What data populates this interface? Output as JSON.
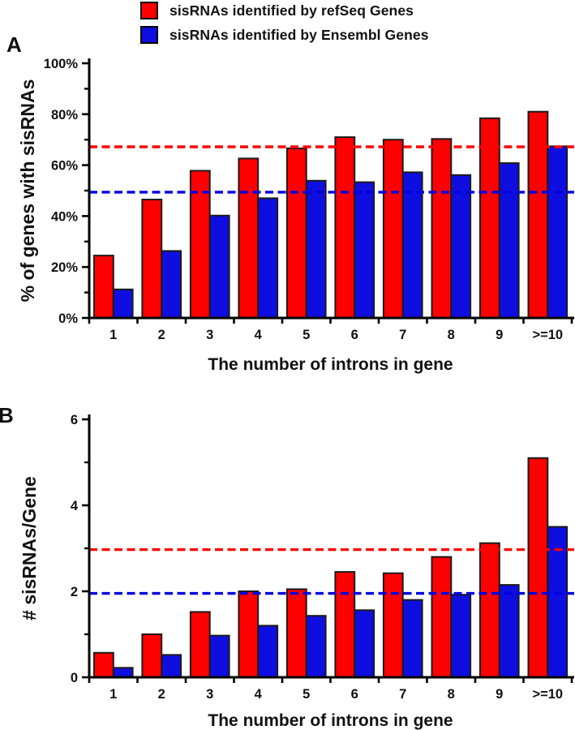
{
  "figure": {
    "legend": {
      "position": "top",
      "items": [
        {
          "label": "sisRNAs identified by refSeq Genes",
          "color": "#FF0000",
          "swatch": "red-square-icon"
        },
        {
          "label": "sisRNAs identified by Ensembl Genes",
          "color": "#0E0EE0",
          "swatch": "blue-square-icon"
        }
      ]
    }
  },
  "colors": {
    "refseq_red": "#FF0000",
    "ensembl_blue": "#0E0EE0",
    "bar_outline": "#1B1B1B",
    "axis": "#000000"
  },
  "chart_data": [
    {
      "type": "bar",
      "panel": "A",
      "xlabel": "The number of introns in gene",
      "ylabel": "% of genes with sisRNAs",
      "categories": [
        "1",
        "2",
        "3",
        "4",
        "5",
        "6",
        "7",
        "8",
        "9",
        ">=10"
      ],
      "series": [
        {
          "name": "sisRNAs identified by refSeq Genes",
          "color": "#FF0000",
          "values": [
            24.5,
            46.5,
            57.8,
            62.6,
            66.6,
            71.0,
            70.0,
            70.3,
            78.4,
            81.0
          ]
        },
        {
          "name": "sisRNAs identified by Ensembl Genes",
          "color": "#0E0EE0",
          "values": [
            11.2,
            26.3,
            40.2,
            47.0,
            53.9,
            53.3,
            57.2,
            56.1,
            60.8,
            67.4
          ]
        }
      ],
      "reference_lines": [
        {
          "value": 67.2,
          "color": "#FF0000",
          "style": "dashed"
        },
        {
          "value": 49.4,
          "color": "#0000DE",
          "style": "dashed"
        }
      ],
      "ylim": [
        0,
        100
      ],
      "yticks": [
        {
          "value": 0,
          "label": "0%"
        },
        {
          "value": 20,
          "label": "20%"
        },
        {
          "value": 40,
          "label": "40%"
        },
        {
          "value": 60,
          "label": "60%"
        },
        {
          "value": 80,
          "label": "80%"
        },
        {
          "value": 100,
          "label": "100%"
        }
      ],
      "yticks_minor": [
        10,
        30,
        50,
        70,
        90
      ],
      "grid": false
    },
    {
      "type": "bar",
      "panel": "B",
      "xlabel": "The number of introns in gene",
      "ylabel": "# sisRNAs/Gene",
      "categories": [
        "1",
        "2",
        "3",
        "4",
        "5",
        "6",
        "7",
        "8",
        "9",
        ">=10"
      ],
      "series": [
        {
          "name": "sisRNAs identified by refSeq Genes",
          "color": "#FF0000",
          "values": [
            0.57,
            1.0,
            1.52,
            2.0,
            2.05,
            2.45,
            2.42,
            2.8,
            3.12,
            5.1
          ]
        },
        {
          "name": "sisRNAs identified by Ensembl Genes",
          "color": "#0E0EE0",
          "values": [
            0.22,
            0.52,
            0.97,
            1.2,
            1.43,
            1.56,
            1.8,
            1.92,
            2.15,
            3.5
          ]
        }
      ],
      "reference_lines": [
        {
          "value": 2.97,
          "color": "#FF0000",
          "style": "dashed"
        },
        {
          "value": 1.95,
          "color": "#0000DE",
          "style": "dashed"
        }
      ],
      "ylim": [
        0,
        6
      ],
      "yticks": [
        {
          "value": 0,
          "label": "0"
        },
        {
          "value": 2,
          "label": "2"
        },
        {
          "value": 4,
          "label": "4"
        },
        {
          "value": 6,
          "label": "6"
        }
      ],
      "yticks_minor": [
        1,
        3,
        5
      ],
      "grid": false
    }
  ]
}
